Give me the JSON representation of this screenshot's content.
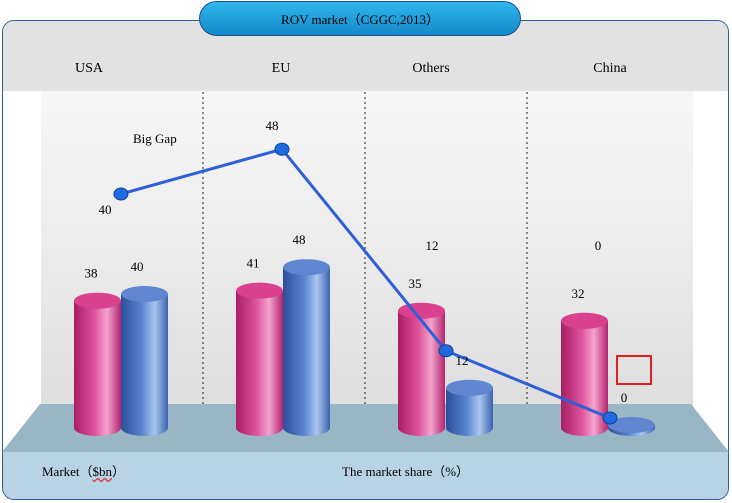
{
  "title": "ROV market（CGGC,2013）",
  "chart_data": {
    "type": "bar",
    "categories": [
      "USA",
      "EU",
      "Others",
      "China"
    ],
    "series": [
      {
        "name": "Market（$bn）",
        "values": [
          38,
          41,
          35,
          32
        ],
        "color": "#c8327f"
      },
      {
        "name": "The market share（%）",
        "values": [
          40,
          48,
          12,
          0
        ],
        "color": "#4a78c4"
      }
    ],
    "line_series": {
      "values": [
        40,
        48,
        12,
        0
      ],
      "color": "#2f5fd6"
    },
    "annotations": [
      "Big Gap"
    ],
    "highlight_box_color": "#e02020"
  },
  "footer": {
    "left_label": "Market（",
    "left_unit": "$bn",
    "left_close": "）",
    "right_label": "The market share（%）"
  }
}
